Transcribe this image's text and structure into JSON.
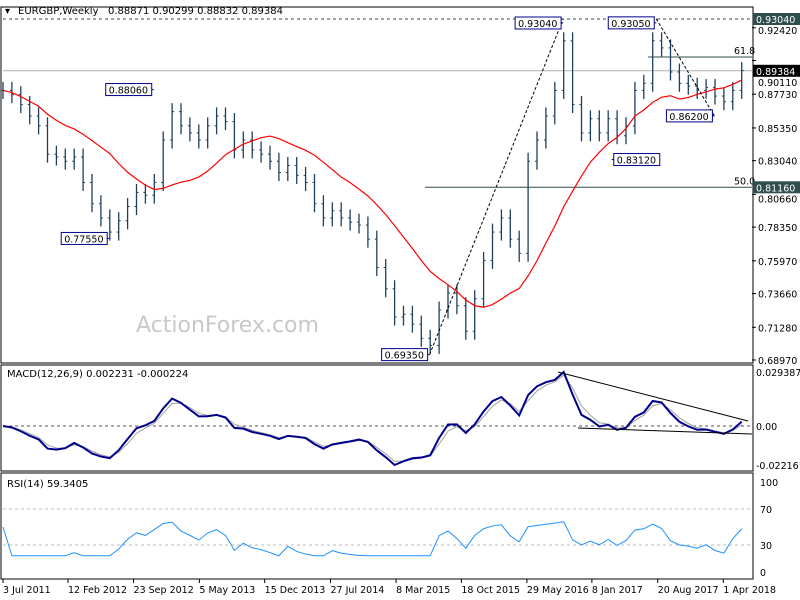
{
  "header": {
    "symbol": "EURGBP,Weekly",
    "ohlc": "0.88871 0.90299 0.88832 0.89384"
  },
  "watermark": "ActionForex.com",
  "colors": {
    "bars": "#1f3f5f",
    "ma": "#ff0000",
    "macd": "#00008b",
    "signal": "#a0a0a0",
    "rsi": "#1e90ff",
    "label_box": "#00008b",
    "axis_tag": "#2f4f4f"
  },
  "chart_data": [
    {
      "type": "line",
      "title": "EURGBP,Weekly",
      "start": "2011-07",
      "close": [
        0.88,
        0.877,
        0.87,
        0.862,
        0.855,
        0.835,
        0.833,
        0.83,
        0.833,
        0.815,
        0.8,
        0.79,
        0.78,
        0.788,
        0.798,
        0.808,
        0.806,
        0.815,
        0.845,
        0.865,
        0.855,
        0.85,
        0.845,
        0.855,
        0.862,
        0.858,
        0.838,
        0.845,
        0.838,
        0.835,
        0.83,
        0.822,
        0.827,
        0.82,
        0.815,
        0.8,
        0.79,
        0.795,
        0.79,
        0.787,
        0.785,
        0.775,
        0.755,
        0.74,
        0.72,
        0.722,
        0.715,
        0.705,
        0.7,
        0.725,
        0.737,
        0.728,
        0.71,
        0.733,
        0.76,
        0.78,
        0.79,
        0.775,
        0.765,
        0.83,
        0.845,
        0.862,
        0.88,
        0.915,
        0.87,
        0.85,
        0.86,
        0.85,
        0.86,
        0.848,
        0.855,
        0.88,
        0.885,
        0.915,
        0.91,
        0.893,
        0.885,
        0.883,
        0.88,
        0.882,
        0.876,
        0.872,
        0.88,
        0.894
      ],
      "ylim": [
        0.6897,
        0.9304
      ],
      "yticks": [
        "0.92420",
        "0.90110",
        "0.87730",
        "0.85350",
        "0.83040",
        "0.80660",
        "0.78350",
        "0.75970",
        "0.73660",
        "0.71280",
        "0.68970"
      ],
      "axis_tags": [
        {
          "value": "0.93040",
          "price": 0.9304
        },
        {
          "value": "0.81160",
          "price": 0.8116
        },
        {
          "value": "0.89384",
          "price": 0.89384,
          "current": true
        }
      ],
      "xticks": [
        {
          "label": "3 Jul 2011",
          "date": "2011-07-03"
        },
        {
          "label": "12 Feb 2012",
          "date": "2012-02-12"
        },
        {
          "label": "23 Sep 2012",
          "date": "2012-09-23"
        },
        {
          "label": "5 May 2013",
          "date": "2013-05-05"
        },
        {
          "label": "15 Dec 2013",
          "date": "2013-12-15"
        },
        {
          "label": "27 Jul 2014",
          "date": "2014-07-27"
        },
        {
          "label": "8 Mar 2015",
          "date": "2015-03-08"
        },
        {
          "label": "18 Oct 2015",
          "date": "2015-10-18"
        },
        {
          "label": "29 May 2016",
          "date": "2016-05-29"
        },
        {
          "label": "8 Jan 2017",
          "date": "2017-01-08"
        },
        {
          "label": "20 Aug 2017",
          "date": "2017-08-20"
        },
        {
          "label": "1 Apr 2018",
          "date": "2018-04-01"
        }
      ],
      "annotations": [
        {
          "label": "0.88060",
          "date": "2012-12-01",
          "price": 0.8806,
          "side": "left"
        },
        {
          "label": "0.77550",
          "date": "2012-07-01",
          "price": 0.7755,
          "side": "left"
        },
        {
          "label": "0.69350",
          "date": "2015-07-01",
          "price": 0.6935,
          "side": "left"
        },
        {
          "label": "0.93040",
          "date": "2016-10-01",
          "price": 0.9304,
          "side": "left"
        },
        {
          "label": "0.83120",
          "date": "2017-03-15",
          "price": 0.8312,
          "side": "right"
        },
        {
          "label": "0.93050",
          "date": "2017-08-15",
          "price": 0.9305,
          "side": "left"
        },
        {
          "label": "0.86200",
          "date": "2018-03-01",
          "price": 0.862,
          "side": "left"
        }
      ],
      "levels": [
        {
          "label": "61.8",
          "price": 0.9036
        },
        {
          "label": "50.0",
          "price": 0.8116
        }
      ],
      "trendlines": [
        {
          "from": {
            "date": "2015-07-01",
            "price": 0.6935
          },
          "to": {
            "date": "2016-10-01",
            "price": 0.9304
          }
        },
        {
          "from": {
            "date": "2017-08-15",
            "price": 0.9305
          },
          "to": {
            "date": "2018-03-01",
            "price": 0.862
          }
        }
      ]
    },
    {
      "type": "line",
      "title": "MACD(12,26,9) 0.002231 -0.000224",
      "ylim": [
        -0.022161,
        0.029387
      ],
      "yticks": [
        "0.029387",
        "0.00",
        "-0.022161"
      ]
    },
    {
      "type": "line",
      "title": "RSI(14) 59.3405",
      "ylim": [
        0,
        100
      ],
      "yticks": [
        "100",
        "70",
        "30",
        "0"
      ]
    }
  ]
}
